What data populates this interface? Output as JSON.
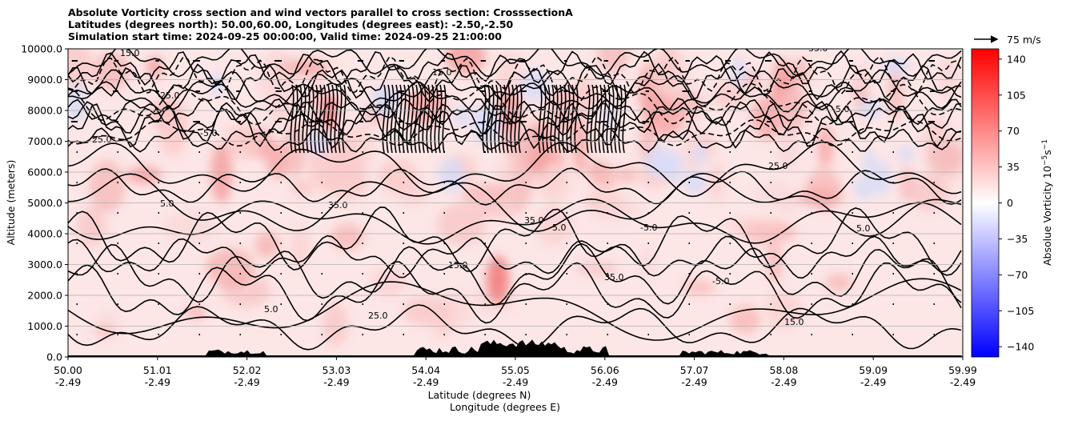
{
  "chart_data": {
    "type": "heatmap",
    "title_lines": [
      "Absolute Vorticity cross section and wind vectors parallel to cross section: CrosssectionA",
      "Latitudes (degrees north): 50.00,60.00, Longitudes (degrees east): -2.50,-2.50",
      "Simulation start time: 2024-09-25 00:00:00, Valid time: 2024-09-25 21:00:00"
    ],
    "ylabel": "Altitude (meters)",
    "xlabel_line1": "Latitude (degrees N)",
    "xlabel_line2": "Longitude (degrees E)",
    "ylim": [
      0,
      10000
    ],
    "y_ticks": [
      "0.0",
      "1000.0",
      "2000.0",
      "3000.0",
      "4000.0",
      "5000.0",
      "6000.0",
      "7000.0",
      "8000.0",
      "9000.0",
      "10000.0"
    ],
    "x_tick_lat": [
      "50.00",
      "51.01",
      "52.02",
      "53.03",
      "54.04",
      "55.05",
      "56.06",
      "57.07",
      "58.08",
      "59.09",
      "59.99"
    ],
    "x_tick_lon": [
      "-2.49",
      "-2.49",
      "-2.49",
      "-2.49",
      "-2.49",
      "-2.49",
      "-2.49",
      "-2.49",
      "-2.49",
      "-2.49",
      "-2.49"
    ],
    "colorbar": {
      "label": "Absolue Vorticity 10",
      "label_units_exp": "−5",
      "label_units_s": "s",
      "label_units_s_exp": "−1",
      "range": [
        -150,
        150
      ],
      "ticks": [
        "140",
        "105",
        "70",
        "35",
        "0",
        "−35",
        "−70",
        "−105",
        "−140"
      ],
      "tick_values": [
        140,
        105,
        70,
        35,
        0,
        -35,
        -70,
        -105,
        -140
      ],
      "colormap": "bwr"
    },
    "contour_labels": [
      "5.0",
      "15.0",
      "25.0",
      "35.0",
      "-5.0"
    ],
    "quiver_key": "75 m/s",
    "grid": "horizontal"
  },
  "colors": {
    "positive": "#ff0000",
    "negative": "#0000ff",
    "neutral": "#ffffff"
  }
}
